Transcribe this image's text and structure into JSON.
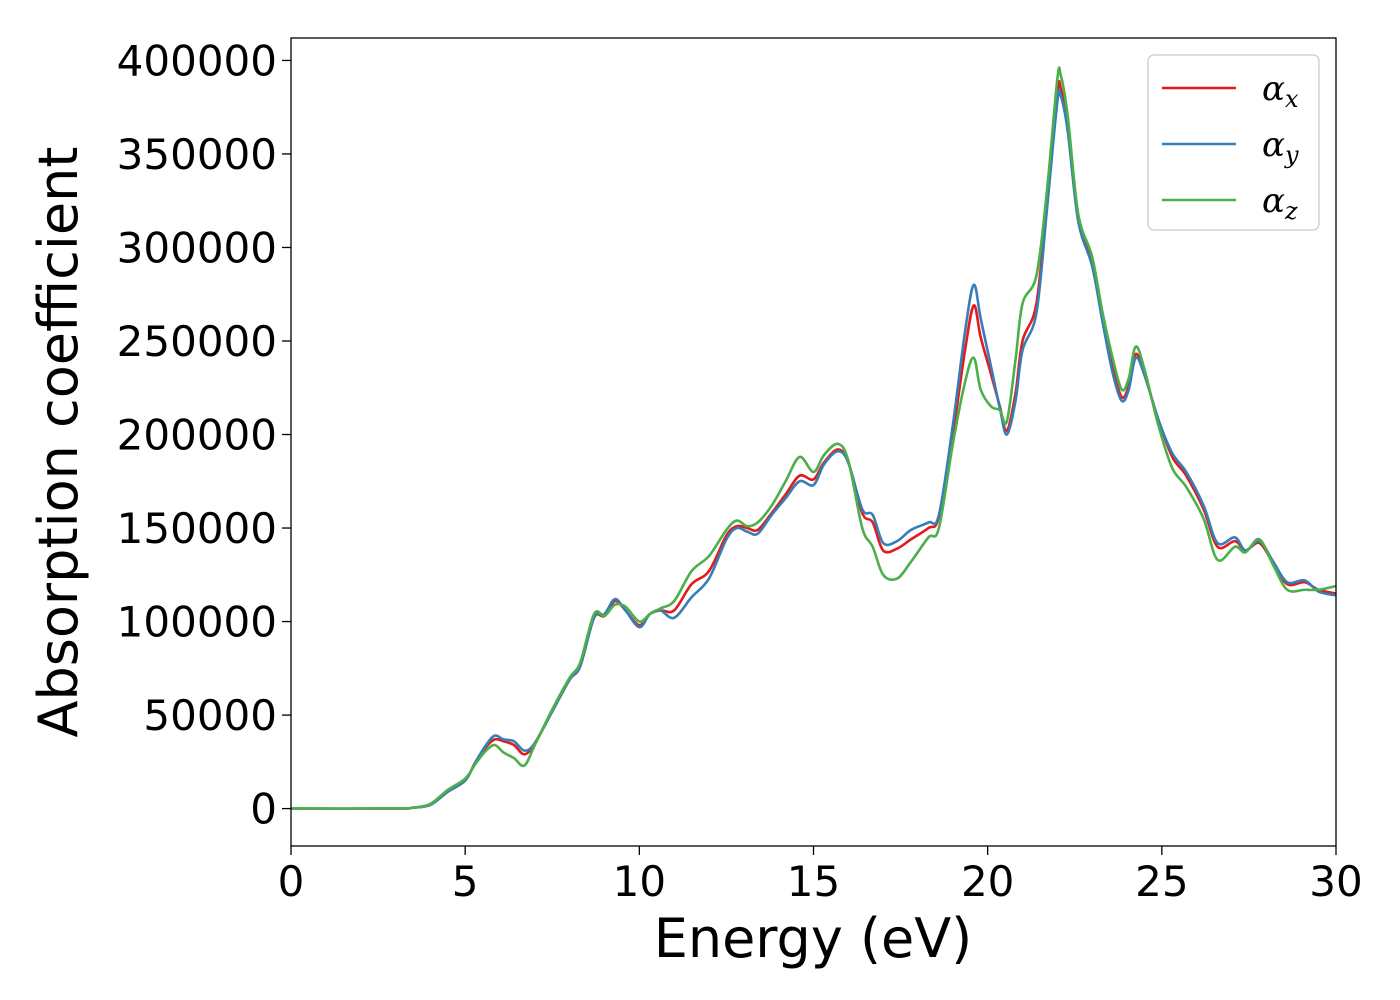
{
  "chart_data": {
    "type": "line",
    "xlabel": "Energy (eV)",
    "ylabel": "Absorption coefficient",
    "xlim": [
      0,
      30
    ],
    "ylim": [
      -20000,
      412000
    ],
    "xticks": [
      0,
      5,
      10,
      15,
      20,
      25,
      30
    ],
    "yticks": [
      0,
      50000,
      100000,
      150000,
      200000,
      250000,
      300000,
      350000,
      400000
    ],
    "grid": false,
    "legend_position": "top-right",
    "series": [
      {
        "name": "α_x",
        "symbol": "α",
        "subscript": "x",
        "color": "#e41a1c",
        "points": [
          [
            0,
            0
          ],
          [
            3,
            0
          ],
          [
            3.5,
            500
          ],
          [
            4,
            2000
          ],
          [
            4.5,
            9000
          ],
          [
            5,
            15000
          ],
          [
            5.3,
            25000
          ],
          [
            5.6,
            33000
          ],
          [
            5.85,
            37000
          ],
          [
            6.1,
            36000
          ],
          [
            6.4,
            34000
          ],
          [
            6.7,
            29000
          ],
          [
            7,
            35000
          ],
          [
            7.5,
            52000
          ],
          [
            8,
            69000
          ],
          [
            8.3,
            76000
          ],
          [
            8.7,
            102000
          ],
          [
            9,
            103000
          ],
          [
            9.3,
            111000
          ],
          [
            9.6,
            106000
          ],
          [
            10,
            98000
          ],
          [
            10.3,
            104000
          ],
          [
            10.6,
            106000
          ],
          [
            11,
            106000
          ],
          [
            11.5,
            120000
          ],
          [
            12,
            127000
          ],
          [
            12.5,
            146000
          ],
          [
            12.8,
            151000
          ],
          [
            13.1,
            150000
          ],
          [
            13.4,
            149000
          ],
          [
            13.8,
            158000
          ],
          [
            14.2,
            168000
          ],
          [
            14.6,
            178000
          ],
          [
            15,
            176000
          ],
          [
            15.3,
            185000
          ],
          [
            15.7,
            192000
          ],
          [
            16,
            185000
          ],
          [
            16.4,
            158000
          ],
          [
            16.7,
            153000
          ],
          [
            17,
            138000
          ],
          [
            17.4,
            139000
          ],
          [
            17.8,
            144000
          ],
          [
            18.3,
            150000
          ],
          [
            18.6,
            156000
          ],
          [
            19,
            200000
          ],
          [
            19.35,
            245000
          ],
          [
            19.6,
            269000
          ],
          [
            19.8,
            252000
          ],
          [
            20.1,
            232000
          ],
          [
            20.35,
            215000
          ],
          [
            20.55,
            202000
          ],
          [
            20.8,
            222000
          ],
          [
            21,
            250000
          ],
          [
            21.4,
            270000
          ],
          [
            21.7,
            325000
          ],
          [
            22,
            383000
          ],
          [
            22.1,
            385000
          ],
          [
            22.3,
            365000
          ],
          [
            22.6,
            315000
          ],
          [
            23,
            292000
          ],
          [
            23.3,
            262000
          ],
          [
            23.6,
            235000
          ],
          [
            23.85,
            220000
          ],
          [
            24.05,
            226000
          ],
          [
            24.25,
            243000
          ],
          [
            24.5,
            232000
          ],
          [
            24.9,
            208000
          ],
          [
            25.3,
            188000
          ],
          [
            25.7,
            178000
          ],
          [
            26.2,
            160000
          ],
          [
            26.6,
            140000
          ],
          [
            27.1,
            143000
          ],
          [
            27.4,
            138000
          ],
          [
            27.8,
            142000
          ],
          [
            28.2,
            131000
          ],
          [
            28.6,
            120000
          ],
          [
            29.1,
            121000
          ],
          [
            29.5,
            117000
          ],
          [
            30,
            115000
          ]
        ]
      },
      {
        "name": "α_y",
        "symbol": "α",
        "subscript": "y",
        "color": "#377eb8",
        "points": [
          [
            0,
            0
          ],
          [
            3,
            0
          ],
          [
            3.5,
            500
          ],
          [
            4,
            2000
          ],
          [
            4.5,
            9000
          ],
          [
            5,
            15000
          ],
          [
            5.3,
            25000
          ],
          [
            5.6,
            34000
          ],
          [
            5.85,
            39000
          ],
          [
            6.1,
            37000
          ],
          [
            6.4,
            36000
          ],
          [
            6.7,
            31000
          ],
          [
            7,
            35000
          ],
          [
            7.5,
            52000
          ],
          [
            8,
            69000
          ],
          [
            8.3,
            76000
          ],
          [
            8.7,
            102000
          ],
          [
            9,
            104000
          ],
          [
            9.3,
            112000
          ],
          [
            9.6,
            106000
          ],
          [
            10,
            97000
          ],
          [
            10.3,
            104000
          ],
          [
            10.6,
            106000
          ],
          [
            11,
            102000
          ],
          [
            11.5,
            113000
          ],
          [
            12,
            123000
          ],
          [
            12.5,
            144000
          ],
          [
            12.8,
            150000
          ],
          [
            13.1,
            148000
          ],
          [
            13.4,
            147000
          ],
          [
            13.8,
            157000
          ],
          [
            14.2,
            166000
          ],
          [
            14.6,
            175000
          ],
          [
            15,
            173000
          ],
          [
            15.3,
            184000
          ],
          [
            15.7,
            191000
          ],
          [
            16,
            185000
          ],
          [
            16.4,
            160000
          ],
          [
            16.7,
            157000
          ],
          [
            17,
            142000
          ],
          [
            17.4,
            143000
          ],
          [
            17.8,
            149000
          ],
          [
            18.3,
            153000
          ],
          [
            18.6,
            157000
          ],
          [
            19,
            205000
          ],
          [
            19.35,
            255000
          ],
          [
            19.6,
            280000
          ],
          [
            19.8,
            262000
          ],
          [
            20.1,
            236000
          ],
          [
            20.35,
            214000
          ],
          [
            20.55,
            200000
          ],
          [
            20.8,
            218000
          ],
          [
            21,
            245000
          ],
          [
            21.4,
            265000
          ],
          [
            21.7,
            320000
          ],
          [
            22,
            378000
          ],
          [
            22.1,
            381000
          ],
          [
            22.3,
            362000
          ],
          [
            22.6,
            314000
          ],
          [
            23,
            290000
          ],
          [
            23.3,
            260000
          ],
          [
            23.6,
            232000
          ],
          [
            23.85,
            218000
          ],
          [
            24.05,
            224000
          ],
          [
            24.25,
            241000
          ],
          [
            24.5,
            232000
          ],
          [
            24.9,
            208000
          ],
          [
            25.3,
            190000
          ],
          [
            25.7,
            180000
          ],
          [
            26.2,
            162000
          ],
          [
            26.6,
            142000
          ],
          [
            27.1,
            145000
          ],
          [
            27.4,
            138000
          ],
          [
            27.8,
            143000
          ],
          [
            28.2,
            132000
          ],
          [
            28.6,
            121000
          ],
          [
            29.1,
            122000
          ],
          [
            29.5,
            116000
          ],
          [
            30,
            114000
          ]
        ]
      },
      {
        "name": "α_z",
        "symbol": "α",
        "subscript": "z",
        "color": "#4daf4a",
        "points": [
          [
            0,
            0
          ],
          [
            3,
            0
          ],
          [
            3.5,
            500
          ],
          [
            4,
            2500
          ],
          [
            4.5,
            10000
          ],
          [
            5,
            16000
          ],
          [
            5.3,
            24000
          ],
          [
            5.6,
            31000
          ],
          [
            5.85,
            34000
          ],
          [
            6.1,
            30000
          ],
          [
            6.4,
            27000
          ],
          [
            6.7,
            23000
          ],
          [
            7,
            34000
          ],
          [
            7.5,
            53000
          ],
          [
            8,
            70000
          ],
          [
            8.3,
            78000
          ],
          [
            8.7,
            104000
          ],
          [
            9,
            103000
          ],
          [
            9.3,
            109000
          ],
          [
            9.6,
            108000
          ],
          [
            10,
            100000
          ],
          [
            10.3,
            104000
          ],
          [
            10.6,
            107000
          ],
          [
            11,
            111000
          ],
          [
            11.5,
            127000
          ],
          [
            12,
            135000
          ],
          [
            12.5,
            149000
          ],
          [
            12.8,
            154000
          ],
          [
            13.1,
            151000
          ],
          [
            13.4,
            153000
          ],
          [
            13.8,
            162000
          ],
          [
            14.2,
            175000
          ],
          [
            14.6,
            188000
          ],
          [
            15,
            180000
          ],
          [
            15.3,
            189000
          ],
          [
            15.7,
            195000
          ],
          [
            16,
            186000
          ],
          [
            16.4,
            150000
          ],
          [
            16.7,
            140000
          ],
          [
            17,
            125000
          ],
          [
            17.4,
            123000
          ],
          [
            17.8,
            132000
          ],
          [
            18.3,
            145000
          ],
          [
            18.6,
            150000
          ],
          [
            19,
            195000
          ],
          [
            19.35,
            228000
          ],
          [
            19.6,
            241000
          ],
          [
            19.8,
            224000
          ],
          [
            20.1,
            215000
          ],
          [
            20.35,
            213000
          ],
          [
            20.55,
            207000
          ],
          [
            20.8,
            240000
          ],
          [
            21,
            270000
          ],
          [
            21.4,
            285000
          ],
          [
            21.7,
            330000
          ],
          [
            22,
            390000
          ],
          [
            22.1,
            392000
          ],
          [
            22.3,
            370000
          ],
          [
            22.6,
            318000
          ],
          [
            23,
            295000
          ],
          [
            23.3,
            265000
          ],
          [
            23.6,
            240000
          ],
          [
            23.85,
            224000
          ],
          [
            24.05,
            230000
          ],
          [
            24.25,
            247000
          ],
          [
            24.5,
            235000
          ],
          [
            24.9,
            205000
          ],
          [
            25.3,
            182000
          ],
          [
            25.7,
            172000
          ],
          [
            26.2,
            155000
          ],
          [
            26.6,
            133000
          ],
          [
            27.1,
            140000
          ],
          [
            27.4,
            137000
          ],
          [
            27.8,
            144000
          ],
          [
            28.2,
            130000
          ],
          [
            28.6,
            117000
          ],
          [
            29.1,
            117000
          ],
          [
            29.5,
            117000
          ],
          [
            30,
            119000
          ]
        ]
      }
    ]
  }
}
